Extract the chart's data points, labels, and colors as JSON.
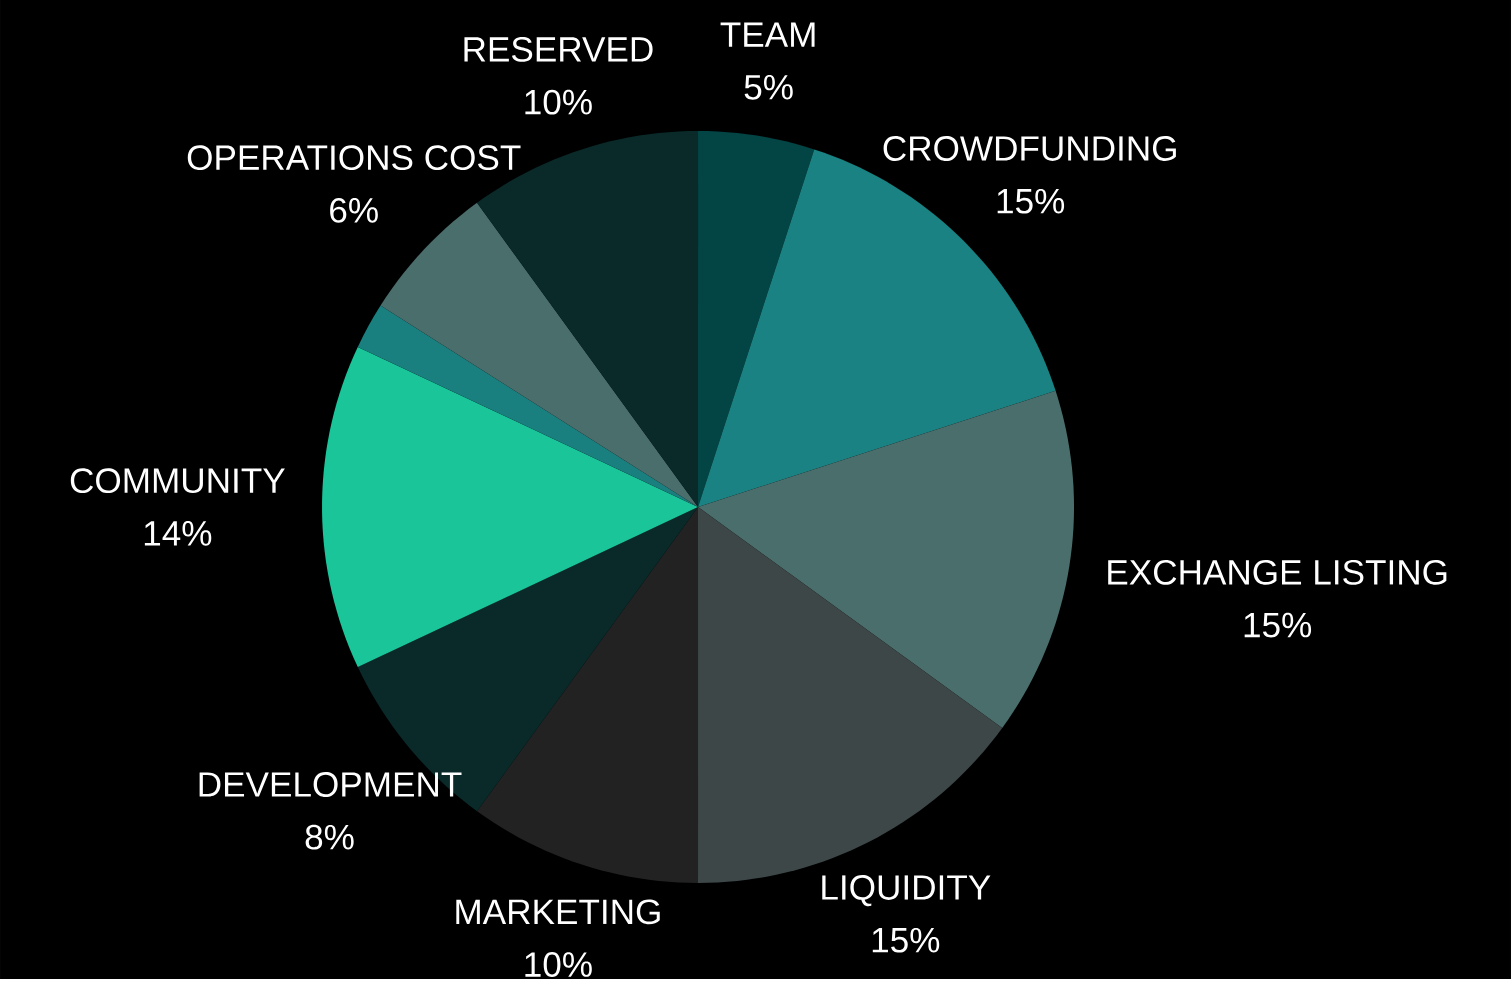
{
  "chart_data": {
    "type": "pie",
    "categories": [
      "TEAM",
      "CROWDFUNDING",
      "EXCHANGE LISTING",
      "LIQUIDITY",
      "MARKETING",
      "DEVELOPMENT",
      "COMMUNITY",
      null,
      "OPERATIONS COST",
      "RESERVED"
    ],
    "values": [
      5,
      15,
      15,
      15,
      10,
      8,
      14,
      2,
      6,
      10
    ],
    "value_labels": [
      "5%",
      "15%",
      "15%",
      "15%",
      "10%",
      "8%",
      "14%",
      null,
      "6%",
      "10%"
    ],
    "colors": [
      "#034444",
      "#1a8282",
      "#4a6e6c",
      "#3d4748",
      "#222222",
      "#0a2a2a",
      "#1ac59a",
      "#1a7f7f",
      "#4a6e6c",
      "#0a2a2a"
    ]
  }
}
